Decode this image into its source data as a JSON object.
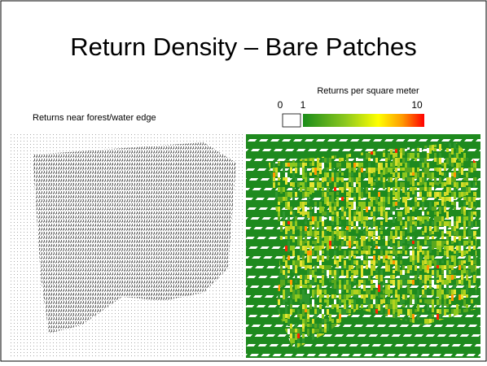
{
  "title": "Return Density – Bare Patches",
  "left_panel": {
    "caption": "Returns near forest/water edge"
  },
  "right_panel": {
    "legend": {
      "title": "Returns per square meter",
      "labels": [
        "0",
        "1",
        "10"
      ]
    }
  }
}
